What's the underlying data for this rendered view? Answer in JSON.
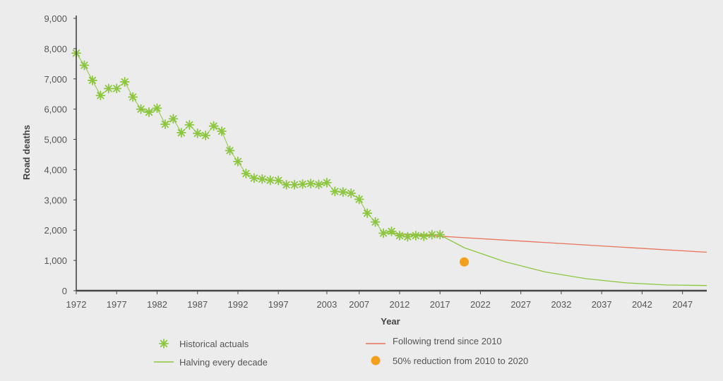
{
  "chart_data": {
    "type": "line",
    "title": "",
    "xlabel": "Year",
    "ylabel": "Road deaths",
    "xlim": [
      1972,
      2050
    ],
    "ylim": [
      0,
      9000
    ],
    "x_ticks": [
      "1972",
      "1977",
      "1982",
      "1987",
      "1992",
      "1997",
      "2003",
      "2007",
      "2012",
      "2017",
      "2022",
      "2027",
      "2032",
      "2037",
      "2042",
      "2047"
    ],
    "y_ticks": [
      "0",
      "1,000",
      "2,000",
      "3,000",
      "4,000",
      "5,000",
      "6,000",
      "7,000",
      "8,000",
      "9,000"
    ],
    "grid": false,
    "legend_position": "bottom",
    "series": [
      {
        "name": "Historical actuals",
        "kind": "scatter-asterisk",
        "color": "#8cc63f",
        "x": [
          1972,
          1973,
          1974,
          1975,
          1976,
          1977,
          1978,
          1979,
          1980,
          1981,
          1982,
          1983,
          1984,
          1985,
          1986,
          1987,
          1988,
          1989,
          1990,
          1991,
          1992,
          1993,
          1994,
          1995,
          1996,
          1997,
          1998,
          1999,
          2000,
          2001,
          2002,
          2003,
          2004,
          2005,
          2006,
          2007,
          2008,
          2009,
          2010,
          2011,
          2012,
          2013,
          2014,
          2015,
          2016,
          2017
        ],
        "y": [
          7850,
          7450,
          6950,
          6450,
          6680,
          6680,
          6900,
          6400,
          6000,
          5900,
          6030,
          5500,
          5680,
          5220,
          5480,
          5200,
          5130,
          5440,
          5270,
          4630,
          4270,
          3870,
          3720,
          3690,
          3650,
          3640,
          3500,
          3500,
          3520,
          3540,
          3510,
          3570,
          3280,
          3260,
          3220,
          3020,
          2560,
          2270,
          1900,
          1960,
          1820,
          1780,
          1820,
          1800,
          1850,
          1850
        ]
      },
      {
        "name": "Halving every decade",
        "kind": "line",
        "color": "#8cc63f",
        "x": [
          2010,
          2012,
          2014,
          2016,
          2017,
          2020,
          2025,
          2030,
          2035,
          2040,
          2045,
          2050
        ],
        "y": [
          1900,
          1880,
          1860,
          1850,
          1840,
          1420,
          960,
          620,
          400,
          260,
          190,
          170
        ]
      },
      {
        "name": "Following trend since 2010",
        "kind": "line",
        "color": "#e8735a",
        "x": [
          2010,
          2017,
          2050
        ],
        "y": [
          1900,
          1800,
          1270
        ]
      },
      {
        "name": "50% reduction from 2010 to 2020",
        "kind": "point",
        "color": "#f5a01a",
        "x": [
          2020
        ],
        "y": [
          950
        ]
      }
    ]
  }
}
